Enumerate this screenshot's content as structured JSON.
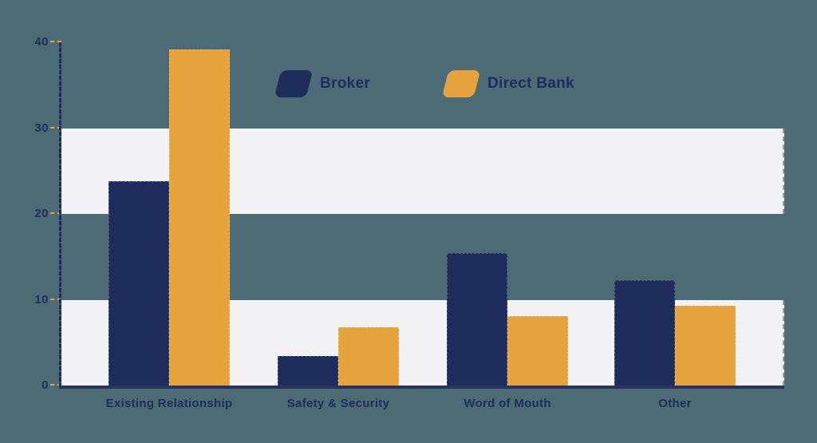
{
  "chart_data": {
    "type": "bar",
    "title": "",
    "categories": [
      "Existing Relationship",
      "Safety & Security",
      "Word of Mouth",
      "Other"
    ],
    "series": [
      {
        "name": "Broker",
        "color": "#1F2D5C",
        "values": [
          23.8,
          3.4,
          15.4,
          12.3
        ]
      },
      {
        "name": "Direct Bank",
        "color": "#E6A33D",
        "values": [
          39.2,
          6.8,
          8.1,
          9.3
        ]
      }
    ],
    "ylim": [
      0,
      40
    ],
    "yticks": [
      40,
      30,
      20,
      10,
      0
    ],
    "xlabel": "",
    "ylabel": "",
    "legend_position": "top-center",
    "grid": "alternating-horizontal-bands",
    "band_ranges": [
      [
        20,
        30
      ],
      [
        0,
        10
      ]
    ],
    "colors": {
      "background": "#4C6B74",
      "band": "#F2F2F4",
      "axis": "#1F2D5C",
      "tick_dash": "#E6A33D",
      "label_text": "#1F2D5C"
    }
  }
}
